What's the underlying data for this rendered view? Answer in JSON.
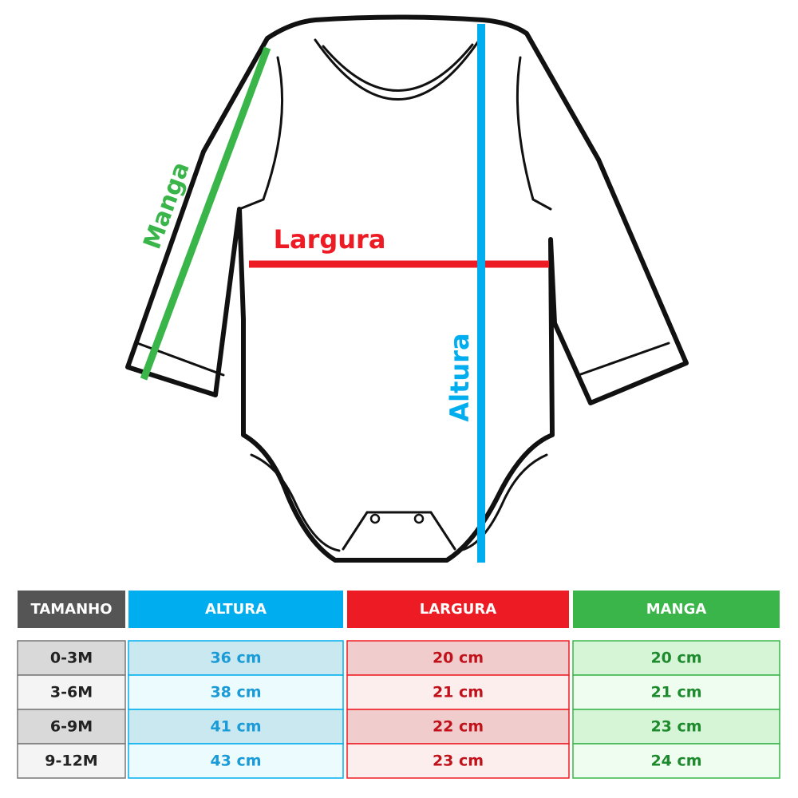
{
  "diagram": {
    "labels": {
      "sleeve": "Manga",
      "width": "Largura",
      "height": "Altura"
    }
  },
  "table": {
    "headers": [
      "TAMANHO",
      "ALTURA",
      "LARGURA",
      "MANGA"
    ],
    "rows": [
      [
        "0-3M",
        "36 cm",
        "20 cm",
        "20 cm"
      ],
      [
        "3-6M",
        "38 cm",
        "21 cm",
        "21 cm"
      ],
      [
        "6-9M",
        "41 cm",
        "22 cm",
        "23 cm"
      ],
      [
        "9-12M",
        "43 cm",
        "23 cm",
        "24 cm"
      ]
    ]
  }
}
